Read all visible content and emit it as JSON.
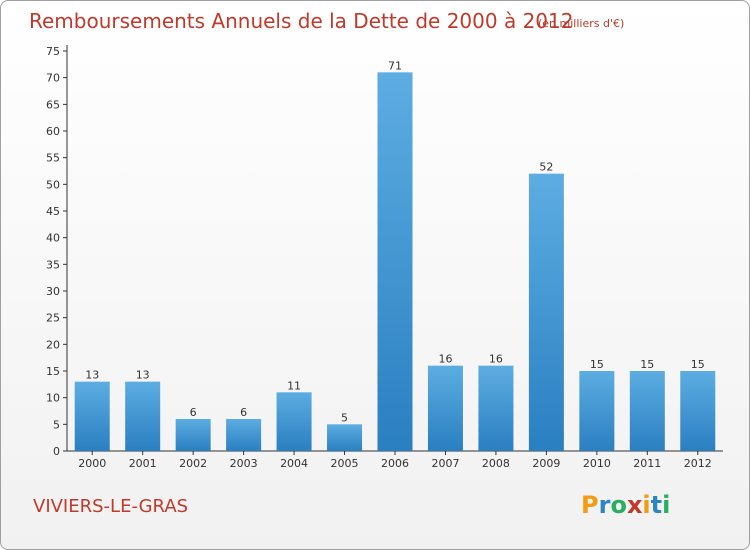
{
  "title": "Remboursements Annuels de la Dette de 2000 à 2012",
  "subtitle": "(en milliers d'€)",
  "commune": "VIVIERS-LE-GRAS",
  "logo": {
    "letters": [
      "P",
      "r",
      "o",
      "x",
      "i",
      "t",
      "i"
    ],
    "colors": [
      "#f39c12",
      "#2e86c1",
      "#27ae60",
      "#c0392b",
      "#f39c12",
      "#2e86c1",
      "#27ae60"
    ]
  },
  "colors": {
    "bar_light": "#5dade2",
    "bar_dark": "#2a7fc0",
    "title": "#c0392b"
  },
  "chart_data": {
    "type": "bar",
    "title": "Remboursements Annuels de la Dette de 2000 à 2012",
    "subtitle": "(en milliers d'€)",
    "categories": [
      "2000",
      "2001",
      "2002",
      "2003",
      "2004",
      "2005",
      "2006",
      "2007",
      "2008",
      "2009",
      "2010",
      "2011",
      "2012"
    ],
    "values": [
      13,
      13,
      6,
      6,
      11,
      5,
      71,
      16,
      16,
      52,
      15,
      15,
      15
    ],
    "data_labels": [
      "13",
      "13",
      "6",
      "6",
      "11",
      "5",
      "71",
      "16",
      "16",
      "52",
      "15",
      "15",
      "15"
    ],
    "ylim": [
      0,
      75
    ],
    "yticks": [
      0,
      5,
      10,
      15,
      20,
      25,
      30,
      35,
      40,
      45,
      50,
      55,
      60,
      65,
      70,
      75
    ],
    "grid": false,
    "legend": "none"
  }
}
